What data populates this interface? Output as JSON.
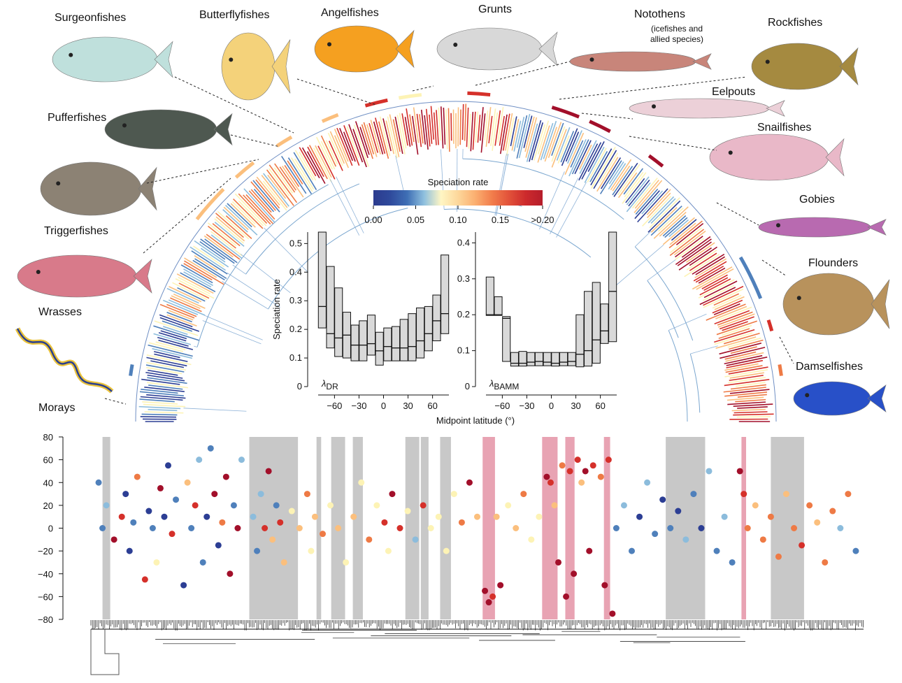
{
  "labels": [
    "Surgeonfishes",
    "Butterflyfishes",
    "Angelfishes",
    "Grunts",
    "Notothens",
    "(icefishes and allied species)",
    "Rockfishes",
    "Eelpouts",
    "Snailfishes",
    "Pufferfishes",
    "Gobies",
    "Triggerfishes",
    "Flounders",
    "Wrasses",
    "Damselfishes",
    "Morays"
  ],
  "x_axis_label": "Midpoint latitude (°)",
  "chart_data": [
    {
      "type": "colorbar",
      "title": "Speciation rate",
      "xlim": [
        0,
        0.2
      ],
      "xticks": [
        {
          "value": 0,
          "label": "0.00"
        },
        0.05,
        {
          "value": 0.1,
          "label": "0.10"
        },
        0.15,
        {
          "value": 0.2,
          "label": ">0.20"
        }
      ],
      "colors": [
        "#2c3b8e",
        "#2f4a9c",
        "#3f6fb5",
        "#8fc0de",
        "#fff6c4",
        "#fdd79b",
        "#fbb071",
        "#f27e4c",
        "#e2523a",
        "#cd2a2c",
        "#b51d2b"
      ]
    },
    {
      "type": "box",
      "ylabel": "Speciation rate",
      "label_symbol": "λ",
      "label_sub": "DR",
      "x": [
        -75,
        -65,
        -55,
        -45,
        -35,
        -25,
        -15,
        -5,
        5,
        15,
        25,
        35,
        45,
        55,
        65,
        75
      ],
      "q3": [
        0.54,
        0.42,
        0.345,
        0.26,
        0.215,
        0.23,
        0.25,
        0.19,
        0.205,
        0.21,
        0.235,
        0.255,
        0.275,
        0.28,
        0.32,
        0.46
      ],
      "median": [
        0.28,
        0.185,
        0.17,
        0.18,
        0.145,
        0.145,
        0.15,
        0.125,
        0.14,
        0.135,
        0.135,
        0.14,
        0.16,
        0.185,
        0.23,
        0.255
      ],
      "q1": [
        0.205,
        0.135,
        0.105,
        0.1,
        0.09,
        0.09,
        0.11,
        0.075,
        0.09,
        0.09,
        0.09,
        0.09,
        0.1,
        0.125,
        0.16,
        0.185
      ],
      "color": "#d9d9d9",
      "xlim": [
        -80,
        80
      ],
      "ylim": [
        0,
        0.54
      ],
      "xticks": [
        {
          "value": -60,
          "label": "−60"
        },
        {
          "value": -30,
          "label": "−30"
        },
        0,
        30,
        60
      ],
      "yticks": [
        0,
        0.1,
        0.2,
        0.3,
        0.4,
        0.5
      ]
    },
    {
      "type": "box",
      "label_symbol": "λ",
      "label_sub": "BAMM",
      "x": [
        -75,
        -65,
        -55,
        -45,
        -35,
        -25,
        -15,
        -5,
        5,
        15,
        25,
        35,
        45,
        55,
        65,
        75
      ],
      "q3": [
        0.305,
        0.25,
        0.195,
        0.095,
        0.098,
        0.095,
        0.095,
        0.095,
        0.095,
        0.095,
        0.095,
        0.2,
        0.265,
        0.29,
        0.23,
        0.43
      ],
      "median": [
        0.2,
        0.2,
        0.19,
        0.065,
        0.065,
        0.068,
        0.07,
        0.068,
        0.065,
        0.068,
        0.07,
        0.09,
        0.1,
        0.13,
        0.155,
        0.265
      ],
      "q1": [
        0.198,
        0.198,
        0.07,
        0.057,
        0.057,
        0.058,
        0.058,
        0.058,
        0.057,
        0.058,
        0.058,
        0.055,
        0.057,
        0.065,
        0.12,
        0.125
      ],
      "color": "#d9d9d9",
      "xlim": [
        -80,
        80
      ],
      "ylim": [
        0,
        0.43
      ],
      "xticks": [
        {
          "value": -60,
          "label": "−60"
        },
        {
          "value": -30,
          "label": "−30"
        },
        0,
        30,
        60
      ],
      "yticks": [
        0,
        0.1,
        0.2,
        0.3,
        0.4
      ]
    },
    {
      "type": "scatter",
      "xlim": [
        0,
        100
      ],
      "ylim": [
        -80,
        80
      ],
      "yticks": [
        {
          "value": -80,
          "label": "−80"
        },
        {
          "value": -60,
          "label": "−60"
        },
        {
          "value": -40,
          "label": "−40"
        },
        {
          "value": -20,
          "label": "−20"
        },
        0,
        20,
        40,
        60,
        80
      ],
      "bands": [
        {
          "x": [
            1.5,
            2.5
          ],
          "color": "#c8c8c8"
        },
        {
          "x": [
            20.5,
            26.8
          ],
          "color": "#c8c8c8"
        },
        {
          "x": [
            29.2,
            29.8
          ],
          "color": "#c8c8c8"
        },
        {
          "x": [
            31.1,
            32.9
          ],
          "color": "#c8c8c8"
        },
        {
          "x": [
            33.9,
            35.2
          ],
          "color": "#c8c8c8"
        },
        {
          "x": [
            40.7,
            42.5
          ],
          "color": "#c8c8c8"
        },
        {
          "x": [
            42.7,
            43.7
          ],
          "color": "#c8c8c8"
        },
        {
          "x": [
            45.2,
            46.6
          ],
          "color": "#c8c8c8"
        },
        {
          "x": [
            74.4,
            79.5
          ],
          "color": "#c8c8c8"
        },
        {
          "x": [
            88,
            92.3
          ],
          "color": "#c8c8c8"
        },
        {
          "x": [
            50.7,
            52.3
          ],
          "color": "#e8a3b3"
        },
        {
          "x": [
            58.4,
            60.4
          ],
          "color": "#e8a3b3"
        },
        {
          "x": [
            61.4,
            62.6
          ],
          "color": "#e8a3b3"
        },
        {
          "x": [
            66.4,
            67.2
          ],
          "color": "#e8a3b3"
        },
        {
          "x": [
            84.2,
            84.8
          ],
          "color": "#e8a3b3"
        }
      ],
      "points": [
        {
          "x": 1,
          "y": 40,
          "color": "#4f80bb"
        },
        {
          "x": 1.5,
          "y": 0,
          "color": "#4f80bb"
        },
        {
          "x": 2,
          "y": 20,
          "color": "#8cbcdc"
        },
        {
          "x": 3,
          "y": -10,
          "color": "#a20f2a"
        },
        {
          "x": 4,
          "y": 10,
          "color": "#d5302a"
        },
        {
          "x": 4.5,
          "y": 30,
          "color": "#2c3e94"
        },
        {
          "x": 5,
          "y": -20,
          "color": "#2c3e94"
        },
        {
          "x": 5.5,
          "y": 5,
          "color": "#4f80bb"
        },
        {
          "x": 6,
          "y": 45,
          "color": "#ee7a45"
        },
        {
          "x": 7,
          "y": -45,
          "color": "#d5302a"
        },
        {
          "x": 7.5,
          "y": 15,
          "color": "#2c3e94"
        },
        {
          "x": 8,
          "y": 0,
          "color": "#4f80bb"
        },
        {
          "x": 8.5,
          "y": -30,
          "color": "#fdf3b5"
        },
        {
          "x": 9,
          "y": 35,
          "color": "#a20f2a"
        },
        {
          "x": 9.5,
          "y": 10,
          "color": "#2c3e94"
        },
        {
          "x": 10,
          "y": 55,
          "color": "#2c3e94"
        },
        {
          "x": 10.5,
          "y": -5,
          "color": "#d5302a"
        },
        {
          "x": 11,
          "y": 25,
          "color": "#4f80bb"
        },
        {
          "x": 12,
          "y": -50,
          "color": "#2c3e94"
        },
        {
          "x": 12.5,
          "y": 40,
          "color": "#fbbf7d"
        },
        {
          "x": 13,
          "y": 0,
          "color": "#4f80bb"
        },
        {
          "x": 13.5,
          "y": 20,
          "color": "#d5302a"
        },
        {
          "x": 14,
          "y": 60,
          "color": "#8cbcdc"
        },
        {
          "x": 14.5,
          "y": -30,
          "color": "#4f80bb"
        },
        {
          "x": 15,
          "y": 10,
          "color": "#2c3e94"
        },
        {
          "x": 15.5,
          "y": 70,
          "color": "#4f80bb"
        },
        {
          "x": 16,
          "y": 30,
          "color": "#a20f2a"
        },
        {
          "x": 16.5,
          "y": -15,
          "color": "#2c3e94"
        },
        {
          "x": 17,
          "y": 5,
          "color": "#ee7a45"
        },
        {
          "x": 17.5,
          "y": 45,
          "color": "#a20f2a"
        },
        {
          "x": 18,
          "y": -40,
          "color": "#a20f2a"
        },
        {
          "x": 18.5,
          "y": 20,
          "color": "#4f80bb"
        },
        {
          "x": 19,
          "y": 0,
          "color": "#a20f2a"
        },
        {
          "x": 19.5,
          "y": 60,
          "color": "#8cbcdc"
        },
        {
          "x": 21,
          "y": 10,
          "color": "#8cbcdc"
        },
        {
          "x": 21.5,
          "y": -20,
          "color": "#4f80bb"
        },
        {
          "x": 22,
          "y": 30,
          "color": "#8cbcdc"
        },
        {
          "x": 22.5,
          "y": 0,
          "color": "#d5302a"
        },
        {
          "x": 23,
          "y": 50,
          "color": "#a20f2a"
        },
        {
          "x": 23.5,
          "y": -10,
          "color": "#fbbf7d"
        },
        {
          "x": 24,
          "y": 20,
          "color": "#4f80bb"
        },
        {
          "x": 24.5,
          "y": 5,
          "color": "#d5302a"
        },
        {
          "x": 25,
          "y": -30,
          "color": "#fbbf7d"
        },
        {
          "x": 26,
          "y": 15,
          "color": "#fdf3b5"
        },
        {
          "x": 27,
          "y": 0,
          "color": "#fbbf7d"
        },
        {
          "x": 28,
          "y": 30,
          "color": "#ee7a45"
        },
        {
          "x": 28.5,
          "y": -20,
          "color": "#fdf3b5"
        },
        {
          "x": 29,
          "y": 10,
          "color": "#fbbf7d"
        },
        {
          "x": 30,
          "y": -5,
          "color": "#ee7a45"
        },
        {
          "x": 31,
          "y": 20,
          "color": "#fdf3b5"
        },
        {
          "x": 32,
          "y": 0,
          "color": "#fbbf7d"
        },
        {
          "x": 33,
          "y": -30,
          "color": "#fdf3b5"
        },
        {
          "x": 34,
          "y": 10,
          "color": "#fbbf7d"
        },
        {
          "x": 35,
          "y": 40,
          "color": "#fdf3b5"
        },
        {
          "x": 36,
          "y": -10,
          "color": "#ee7a45"
        },
        {
          "x": 37,
          "y": 20,
          "color": "#fdf3b5"
        },
        {
          "x": 38,
          "y": 5,
          "color": "#d5302a"
        },
        {
          "x": 38.5,
          "y": -20,
          "color": "#fdf3b5"
        },
        {
          "x": 39,
          "y": 30,
          "color": "#a20f2a"
        },
        {
          "x": 40,
          "y": 0,
          "color": "#d5302a"
        },
        {
          "x": 41,
          "y": 15,
          "color": "#fdf3b5"
        },
        {
          "x": 42,
          "y": -10,
          "color": "#8cbcdc"
        },
        {
          "x": 43,
          "y": 20,
          "color": "#d5302a"
        },
        {
          "x": 44,
          "y": 0,
          "color": "#fdf3b5"
        },
        {
          "x": 45,
          "y": 10,
          "color": "#fdf3b5"
        },
        {
          "x": 46,
          "y": -20,
          "color": "#fdf3b5"
        },
        {
          "x": 47,
          "y": 30,
          "color": "#fdf3b5"
        },
        {
          "x": 48,
          "y": 5,
          "color": "#ee7a45"
        },
        {
          "x": 49,
          "y": 40,
          "color": "#a20f2a"
        },
        {
          "x": 50,
          "y": 10,
          "color": "#fbbf7d"
        },
        {
          "x": 51,
          "y": -55,
          "color": "#a20f2a"
        },
        {
          "x": 51.5,
          "y": -65,
          "color": "#a20f2a"
        },
        {
          "x": 52,
          "y": -60,
          "color": "#d5302a"
        },
        {
          "x": 52.5,
          "y": 10,
          "color": "#fbbf7d"
        },
        {
          "x": 53,
          "y": -50,
          "color": "#a20f2a"
        },
        {
          "x": 54,
          "y": 20,
          "color": "#fdf3b5"
        },
        {
          "x": 55,
          "y": 0,
          "color": "#fbbf7d"
        },
        {
          "x": 56,
          "y": 30,
          "color": "#ee7a45"
        },
        {
          "x": 57,
          "y": -10,
          "color": "#fdf3b5"
        },
        {
          "x": 58,
          "y": 10,
          "color": "#fdf3b5"
        },
        {
          "x": 59,
          "y": 45,
          "color": "#a20f2a"
        },
        {
          "x": 59.5,
          "y": 40,
          "color": "#d5302a"
        },
        {
          "x": 60,
          "y": 20,
          "color": "#fbbf7d"
        },
        {
          "x": 60.5,
          "y": -30,
          "color": "#a20f2a"
        },
        {
          "x": 61,
          "y": 55,
          "color": "#ee7a45"
        },
        {
          "x": 61.5,
          "y": -60,
          "color": "#a20f2a"
        },
        {
          "x": 62,
          "y": 50,
          "color": "#d5302a"
        },
        {
          "x": 62.5,
          "y": -40,
          "color": "#a20f2a"
        },
        {
          "x": 63,
          "y": 60,
          "color": "#d5302a"
        },
        {
          "x": 63.5,
          "y": 40,
          "color": "#fbbf7d"
        },
        {
          "x": 64,
          "y": 50,
          "color": "#a20f2a"
        },
        {
          "x": 64.5,
          "y": -20,
          "color": "#a20f2a"
        },
        {
          "x": 65,
          "y": 55,
          "color": "#d5302a"
        },
        {
          "x": 66,
          "y": 45,
          "color": "#ee7a45"
        },
        {
          "x": 66.5,
          "y": -50,
          "color": "#a20f2a"
        },
        {
          "x": 67,
          "y": 60,
          "color": "#d5302a"
        },
        {
          "x": 67.5,
          "y": -75,
          "color": "#a20f2a"
        },
        {
          "x": 68,
          "y": 0,
          "color": "#4f80bb"
        },
        {
          "x": 69,
          "y": 20,
          "color": "#8cbcdc"
        },
        {
          "x": 70,
          "y": -20,
          "color": "#4f80bb"
        },
        {
          "x": 71,
          "y": 10,
          "color": "#2c3e94"
        },
        {
          "x": 72,
          "y": 40,
          "color": "#8cbcdc"
        },
        {
          "x": 73,
          "y": -5,
          "color": "#4f80bb"
        },
        {
          "x": 74,
          "y": 25,
          "color": "#2c3e94"
        },
        {
          "x": 75,
          "y": 0,
          "color": "#4f80bb"
        },
        {
          "x": 76,
          "y": 15,
          "color": "#2c3e94"
        },
        {
          "x": 77,
          "y": -10,
          "color": "#8cbcdc"
        },
        {
          "x": 78,
          "y": 30,
          "color": "#4f80bb"
        },
        {
          "x": 79,
          "y": 0,
          "color": "#2c3e94"
        },
        {
          "x": 80,
          "y": 50,
          "color": "#8cbcdc"
        },
        {
          "x": 81,
          "y": -20,
          "color": "#4f80bb"
        },
        {
          "x": 82,
          "y": 10,
          "color": "#8cbcdc"
        },
        {
          "x": 83,
          "y": -30,
          "color": "#4f80bb"
        },
        {
          "x": 84,
          "y": 50,
          "color": "#a20f2a"
        },
        {
          "x": 84.5,
          "y": 30,
          "color": "#d5302a"
        },
        {
          "x": 85,
          "y": 0,
          "color": "#ee7a45"
        },
        {
          "x": 86,
          "y": 20,
          "color": "#fbbf7d"
        },
        {
          "x": 87,
          "y": -10,
          "color": "#ee7a45"
        },
        {
          "x": 88,
          "y": 10,
          "color": "#ee7a45"
        },
        {
          "x": 89,
          "y": -25,
          "color": "#ee7a45"
        },
        {
          "x": 90,
          "y": 30,
          "color": "#fbbf7d"
        },
        {
          "x": 91,
          "y": 0,
          "color": "#ee7a45"
        },
        {
          "x": 92,
          "y": -15,
          "color": "#d5302a"
        },
        {
          "x": 93,
          "y": 20,
          "color": "#ee7a45"
        },
        {
          "x": 94,
          "y": 5,
          "color": "#fbbf7d"
        },
        {
          "x": 95,
          "y": -30,
          "color": "#ee7a45"
        },
        {
          "x": 96,
          "y": 15,
          "color": "#ee7a45"
        },
        {
          "x": 97,
          "y": 0,
          "color": "#8cbcdc"
        },
        {
          "x": 98,
          "y": 30,
          "color": "#ee7a45"
        },
        {
          "x": 99,
          "y": -20,
          "color": "#4f80bb"
        }
      ]
    }
  ]
}
